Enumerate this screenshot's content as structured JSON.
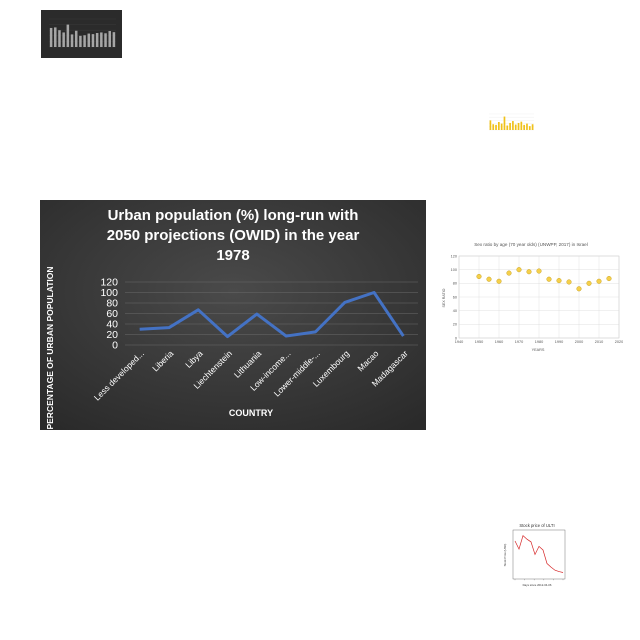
{
  "chart_data": [
    {
      "id": "t1",
      "type": "bar",
      "title": "",
      "colors": {
        "background": "#2b2b2b",
        "bar": "#a6a6a6"
      },
      "values": [
        68,
        70,
        60,
        52,
        80,
        45,
        58,
        40,
        42,
        48,
        46,
        50,
        52,
        49,
        57,
        53
      ],
      "ylim": [
        0,
        100
      ],
      "grid": true
    },
    {
      "id": "t2",
      "type": "bar",
      "title": "",
      "colors": {
        "background": "#ffffff",
        "bar": "#f0c11a"
      },
      "values": [
        30,
        18,
        16,
        25,
        20,
        42,
        14,
        22,
        28,
        17,
        22,
        26,
        16,
        20,
        12,
        18
      ],
      "ylim": [
        0,
        50
      ],
      "grid": true
    },
    {
      "id": "main",
      "type": "line",
      "title_lines": [
        "Urban population (%) long-run with",
        "2050 projections (OWID) in the year",
        "1978"
      ],
      "xlabel": "COUNTRY",
      "ylabel": "PERCENTAGE OF URBAN POPULATION",
      "categories": [
        "Less developed...",
        "Liberia",
        "Libya",
        "Liechtenstein",
        "Lithuania",
        "Low-income...",
        "Lower-middle-...",
        "Luxembourg",
        "Macao",
        "Madagascar"
      ],
      "values": [
        30,
        33,
        67,
        16,
        59,
        17,
        25,
        81,
        100,
        17
      ],
      "yticks": [
        0,
        20,
        40,
        60,
        80,
        100,
        120
      ],
      "ylim": [
        0,
        120
      ],
      "grid": true,
      "colors": {
        "background": "#3a3a3a",
        "line": "#4472c4",
        "text": "#ffffff",
        "grid": "#6a6a6a"
      }
    },
    {
      "id": "t3",
      "type": "scatter",
      "title": "Sex ratio by age (70 year olds) (UNWPP, 2017) in Israel",
      "xlabel": "YEARS",
      "ylabel": "SEX RATIO",
      "x": [
        1950,
        1955,
        1960,
        1965,
        1970,
        1975,
        1980,
        1985,
        1990,
        1995,
        2000,
        2005,
        2010,
        2015
      ],
      "y": [
        90,
        86,
        83,
        95,
        100,
        97,
        98,
        86,
        84,
        82,
        72,
        80,
        83,
        87
      ],
      "xticks": [
        1940,
        1950,
        1960,
        1970,
        1980,
        1990,
        2000,
        2010,
        2020
      ],
      "yticks": [
        0,
        20,
        40,
        60,
        80,
        100,
        120
      ],
      "xlim": [
        1940,
        2020
      ],
      "ylim": [
        0,
        120
      ],
      "grid": true,
      "colors": {
        "point": "#f5d04a",
        "point_edge": "#c9a227",
        "grid": "#d9d9d9",
        "text": "#555555"
      }
    },
    {
      "id": "t4",
      "type": "line",
      "title": "Stock price of ULTI",
      "xlabel": "Days since 2012-04-06",
      "ylabel": "Stock Price (USD)",
      "x": [
        0,
        1,
        2,
        3,
        4,
        5,
        6,
        7,
        8,
        9,
        10,
        11,
        12
      ],
      "y": [
        80,
        62,
        92,
        84,
        78,
        50,
        68,
        60,
        30,
        22,
        15,
        12,
        10
      ],
      "ylim": [
        0,
        100
      ],
      "colors": {
        "line": "#d62728",
        "text": "#333333"
      }
    }
  ]
}
